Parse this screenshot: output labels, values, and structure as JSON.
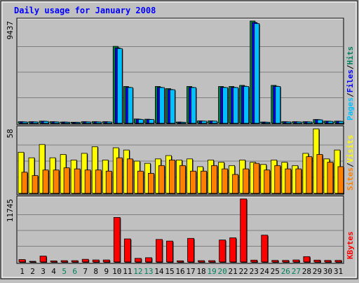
{
  "chart_data": {
    "type": "bar",
    "title": "Daily usage for January 2008",
    "x": [
      "1",
      "2",
      "3",
      "4",
      "5",
      "6",
      "7",
      "8",
      "9",
      "10",
      "11",
      "12",
      "13",
      "14",
      "15",
      "16",
      "17",
      "18",
      "19",
      "20",
      "21",
      "22",
      "23",
      "24",
      "25",
      "26",
      "27",
      "28",
      "29",
      "30",
      "31"
    ],
    "weekend_days": [
      "5",
      "6",
      "12",
      "13",
      "19",
      "20",
      "26",
      "27"
    ],
    "panels": [
      {
        "axis_max_label": "9437",
        "ylim": [
          0,
          9437
        ],
        "legend": [
          {
            "text": "Pages",
            "color": "#00c0ff"
          },
          {
            "text": "Files",
            "color": "#0000ff"
          },
          {
            "text": "Hits",
            "color": "#00805c"
          }
        ],
        "series": [
          {
            "name": "Hits",
            "color": "#008040",
            "values": [
              150,
              150,
              200,
              150,
              120,
              100,
              150,
              150,
              150,
              7100,
              3400,
              400,
              380,
              3400,
              3200,
              120,
              3400,
              220,
              220,
              3400,
              3400,
              3500,
              9437,
              120,
              3500,
              150,
              150,
              150,
              350,
              200,
              200
            ]
          },
          {
            "name": "Files",
            "color": "#0000ff",
            "values": [
              140,
              140,
              190,
              140,
              115,
              95,
              140,
              140,
              140,
              6950,
              3320,
              380,
              360,
              3320,
              3120,
              110,
              3320,
              210,
              210,
              3320,
              3320,
              3420,
              9300,
              110,
              3420,
              140,
              140,
              140,
              340,
              190,
              190
            ]
          },
          {
            "name": "Pages",
            "color": "#00c0ff",
            "values": [
              130,
              130,
              180,
              130,
              110,
              90,
              130,
              130,
              130,
              6900,
              3300,
              360,
              350,
              3300,
              3100,
              100,
              3300,
              200,
              200,
              3300,
              3300,
              3400,
              9200,
              100,
              3400,
              130,
              130,
              130,
              320,
              180,
              180
            ]
          }
        ]
      },
      {
        "axis_max_label": "58",
        "ylim": [
          0,
          58
        ],
        "legend": [
          {
            "text": "Sites",
            "color": "#ff8000"
          },
          {
            "text": "Visits",
            "color": "#ffff00"
          }
        ],
        "series": [
          {
            "name": "Visits",
            "color": "#ffff00",
            "values": [
              37,
              32,
              44,
              32,
              35,
              30,
              36,
              42,
              30,
              41,
              39,
              29,
              27,
              31,
              34,
              30,
              31,
              24,
              30,
              28,
              25,
              30,
              28,
              26,
              30,
              28,
              25,
              36,
              58,
              31,
              39
            ]
          },
          {
            "name": "Sites",
            "color": "#ff8000",
            "values": [
              19,
              16,
              21,
              21,
              23,
              22,
              21,
              21,
              20,
              32,
              31,
              20,
              18,
              25,
              30,
              25,
              20,
              20,
              25,
              22,
              17,
              22,
              27,
              21,
              25,
              22,
              22,
              33,
              35,
              28,
              24
            ]
          }
        ]
      },
      {
        "axis_max_label": "11745",
        "ylim": [
          0,
          11745
        ],
        "legend": [
          {
            "text": "KBytes",
            "color": "#ff0000"
          }
        ],
        "series": [
          {
            "name": "KBytes",
            "color": "#ff0000",
            "values": [
              450,
              120,
              1100,
              200,
              250,
              250,
              500,
              380,
              380,
              8300,
              4300,
              680,
              800,
              4200,
              3900,
              220,
              4400,
              250,
              250,
              4100,
              4500,
              11745,
              350,
              5000,
              300,
              300,
              380,
              1000,
              350,
              300,
              300
            ]
          }
        ]
      }
    ]
  },
  "colors": {
    "background": "#c0c0c0",
    "plot_background": "#c0c0c0",
    "gridline": "#808080",
    "title": "#0000ff",
    "axis_text": "#000000",
    "weekday_label": "#000000",
    "weekend_label": "#00805c",
    "slash": "#000000"
  }
}
